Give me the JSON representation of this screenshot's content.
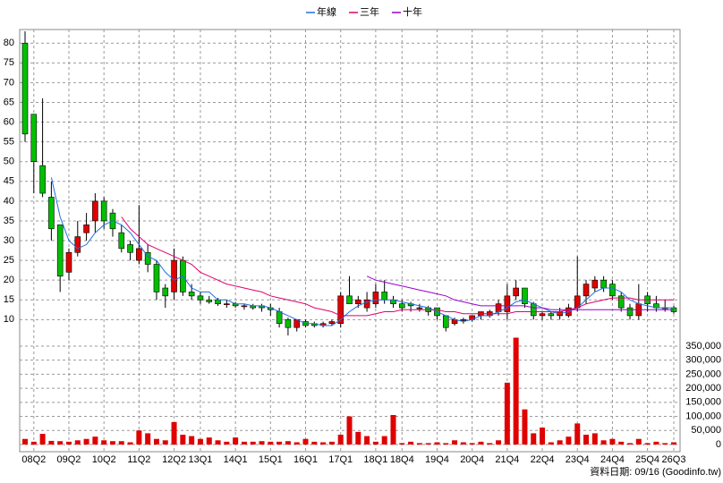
{
  "chart_data": {
    "type": "candlestick",
    "categories": [
      null,
      "08Q2",
      null,
      null,
      null,
      "09Q2",
      null,
      null,
      null,
      "10Q2",
      null,
      null,
      null,
      "11Q2",
      null,
      null,
      null,
      "12Q2",
      null,
      null,
      "13Q1",
      null,
      null,
      null,
      "14Q1",
      null,
      null,
      null,
      "15Q1",
      null,
      null,
      null,
      "16Q1",
      null,
      null,
      null,
      "17Q1",
      null,
      null,
      null,
      "18Q1",
      null,
      null,
      "18Q4",
      null,
      null,
      null,
      "19Q4",
      null,
      null,
      null,
      "20Q4",
      null,
      null,
      null,
      "21Q4",
      null,
      null,
      null,
      "22Q4",
      null,
      null,
      null,
      "23Q4",
      null,
      null,
      null,
      "24Q4",
      null,
      null,
      null,
      "25Q4",
      null,
      null,
      "26Q3"
    ],
    "ohlc": {
      "open": [
        80,
        62,
        49,
        41,
        34,
        22,
        27,
        32,
        35,
        40,
        37,
        32,
        29,
        25,
        27,
        24,
        18,
        17,
        25,
        17,
        16,
        15,
        15,
        14,
        14,
        13.5,
        13.5,
        13.5,
        13,
        12,
        10,
        8,
        9.5,
        9,
        8.5,
        9,
        9,
        16,
        14,
        13,
        14,
        17,
        15,
        14,
        14,
        13,
        13,
        13,
        11,
        9,
        10,
        10,
        11,
        11,
        12,
        12,
        16,
        18,
        14,
        11,
        11.5,
        11,
        11,
        13,
        16,
        18,
        20,
        19,
        16,
        13,
        11,
        16,
        14,
        13,
        13
      ],
      "high": [
        83,
        62,
        66,
        45,
        34,
        28,
        35,
        37,
        42,
        41,
        38,
        34,
        30,
        39,
        29,
        25,
        19,
        28,
        26,
        19,
        17,
        16,
        15.5,
        15,
        14.5,
        14,
        14,
        14,
        14,
        13,
        10.5,
        10,
        10,
        9.5,
        9.5,
        10,
        17,
        21,
        16,
        17,
        19,
        20,
        16,
        15,
        14.5,
        14,
        13.5,
        13,
        11,
        10.5,
        10.5,
        11,
        12,
        12.5,
        15,
        19,
        20,
        18,
        14.5,
        12,
        12,
        13,
        14,
        26,
        20,
        21,
        21,
        20,
        17,
        14,
        19,
        17,
        16,
        15,
        13.5
      ],
      "low": [
        55,
        42,
        41,
        30,
        17,
        20,
        26,
        30,
        32,
        33,
        31,
        27,
        25,
        24,
        22,
        15,
        13,
        15,
        16,
        15,
        14,
        14,
        13.5,
        13,
        13,
        12.5,
        12.5,
        12,
        11,
        8,
        6,
        7,
        8,
        8,
        8,
        8.5,
        8,
        14,
        13,
        12,
        13,
        14,
        13,
        12,
        12,
        12,
        11,
        10,
        7,
        8.5,
        9,
        9.5,
        10,
        10.5,
        11,
        10,
        15,
        13,
        10,
        10,
        10,
        10,
        10.5,
        12,
        14,
        17,
        17,
        15,
        12,
        10,
        10,
        12,
        12,
        12,
        11.5
      ],
      "close": [
        57,
        50,
        42,
        33,
        21,
        27,
        31,
        34,
        40,
        35,
        33,
        28,
        27,
        28,
        24,
        17,
        16,
        25,
        17,
        16,
        15,
        14.5,
        14,
        14,
        13.5,
        13.5,
        13,
        13,
        12.5,
        9,
        8,
        10,
        8.5,
        8.5,
        9,
        9.5,
        16,
        14,
        15,
        15,
        17,
        15,
        14,
        13,
        13.5,
        13,
        12,
        11,
        8,
        10,
        10,
        11,
        12,
        12,
        14,
        16,
        18,
        14,
        11,
        11.5,
        11,
        12,
        13,
        16,
        19,
        20,
        18,
        16,
        13,
        11,
        14,
        14,
        13,
        13,
        12
      ],
      "up_color": "#e00000",
      "down_color": "#00c000"
    },
    "lines": [
      {
        "name": "年線",
        "color": "#1f6fe0",
        "values": [
          null,
          null,
          null,
          46,
          36,
          30,
          28,
          29,
          32,
          34,
          35,
          34,
          32,
          29,
          26,
          25,
          22,
          20,
          21,
          18,
          17,
          17,
          15,
          15,
          14,
          14,
          13.5,
          13.5,
          13,
          12,
          11,
          10,
          9,
          9,
          8.5,
          8.5,
          10,
          12,
          13.5,
          14.5,
          15,
          15,
          15,
          14.5,
          14,
          13.5,
          13,
          12,
          11,
          10,
          9.5,
          10,
          11,
          11,
          12,
          13,
          14.5,
          15,
          14,
          13,
          12,
          11.5,
          12,
          13,
          15,
          17,
          18,
          18,
          17,
          15,
          14,
          13.5,
          13,
          13,
          13
        ]
      },
      {
        "name": "三年",
        "color": "#e0006e",
        "values": [
          null,
          null,
          null,
          null,
          null,
          null,
          null,
          null,
          null,
          null,
          null,
          36,
          33,
          31,
          29,
          28,
          27,
          26,
          25,
          24,
          22,
          21,
          20,
          19,
          18.5,
          18,
          17.5,
          17,
          16,
          15.5,
          15,
          14.5,
          14,
          13,
          12.5,
          12,
          11,
          11,
          11,
          11,
          11.5,
          12,
          12,
          12.5,
          12.5,
          12.5,
          12.5,
          12.5,
          12,
          12,
          11.5,
          11.5,
          11.5,
          11.5,
          11.5,
          11.5,
          12,
          12,
          12,
          12,
          12,
          12,
          12.5,
          13,
          14,
          14.5,
          15,
          15.5,
          15.5,
          15.5,
          15,
          15,
          15,
          15,
          15
        ]
      },
      {
        "name": "十年",
        "color": "#9900cc",
        "values": [
          null,
          null,
          null,
          null,
          null,
          null,
          null,
          null,
          null,
          null,
          null,
          null,
          null,
          null,
          null,
          null,
          null,
          null,
          null,
          null,
          null,
          null,
          null,
          null,
          null,
          null,
          null,
          null,
          null,
          null,
          null,
          null,
          null,
          null,
          null,
          null,
          null,
          null,
          null,
          21,
          20,
          19.5,
          19,
          18.5,
          18,
          17.5,
          17,
          16.5,
          16,
          15,
          14.5,
          14,
          13.5,
          13.5,
          13.5,
          13.5,
          13.5,
          13.5,
          13,
          13,
          12.5,
          12.5,
          12.5,
          12.5,
          12.5,
          12.5,
          12.5,
          12.5,
          12.5,
          12.5,
          12.5,
          12.5,
          12.5,
          12.5,
          12.5
        ]
      }
    ],
    "volume": {
      "axis": "y2",
      "color": "#e00000",
      "values": [
        20000,
        10000,
        38000,
        13000,
        12000,
        10000,
        15000,
        20000,
        28000,
        15000,
        12000,
        12000,
        8000,
        50000,
        40000,
        20000,
        15000,
        80000,
        35000,
        30000,
        20000,
        25000,
        15000,
        10000,
        25000,
        10000,
        10000,
        12000,
        10000,
        10000,
        12000,
        8000,
        20000,
        10000,
        8000,
        10000,
        35000,
        100000,
        45000,
        30000,
        10000,
        30000,
        105000,
        5000,
        10000,
        5000,
        5000,
        8000,
        5000,
        15000,
        8000,
        5000,
        10000,
        5000,
        15000,
        220000,
        380000,
        125000,
        40000,
        60000,
        8000,
        15000,
        28000,
        75000,
        35000,
        40000,
        15000,
        20000,
        10000,
        5000,
        20000,
        5000,
        10000,
        5000,
        8000
      ]
    },
    "ylim": [
      6,
      83
    ],
    "yticks": [
      10,
      15,
      20,
      25,
      30,
      35,
      40,
      45,
      50,
      55,
      60,
      65,
      70,
      75,
      80
    ],
    "y2lim": [
      0,
      388000
    ],
    "y2ticks": [
      0,
      {
        "value": 50000,
        "label": "50,000"
      },
      {
        "value": 100000,
        "label": "100,000"
      },
      {
        "value": 150000,
        "label": "150,000"
      },
      {
        "value": 200000,
        "label": "200,000"
      },
      {
        "value": 250000,
        "label": "250,000"
      },
      {
        "value": 300000,
        "label": "300,000"
      },
      {
        "value": 350000,
        "label": "350,000"
      }
    ],
    "grid": true,
    "legend": "top",
    "footer": "資料日期: 09/16 (Goodinfo.tw)"
  }
}
